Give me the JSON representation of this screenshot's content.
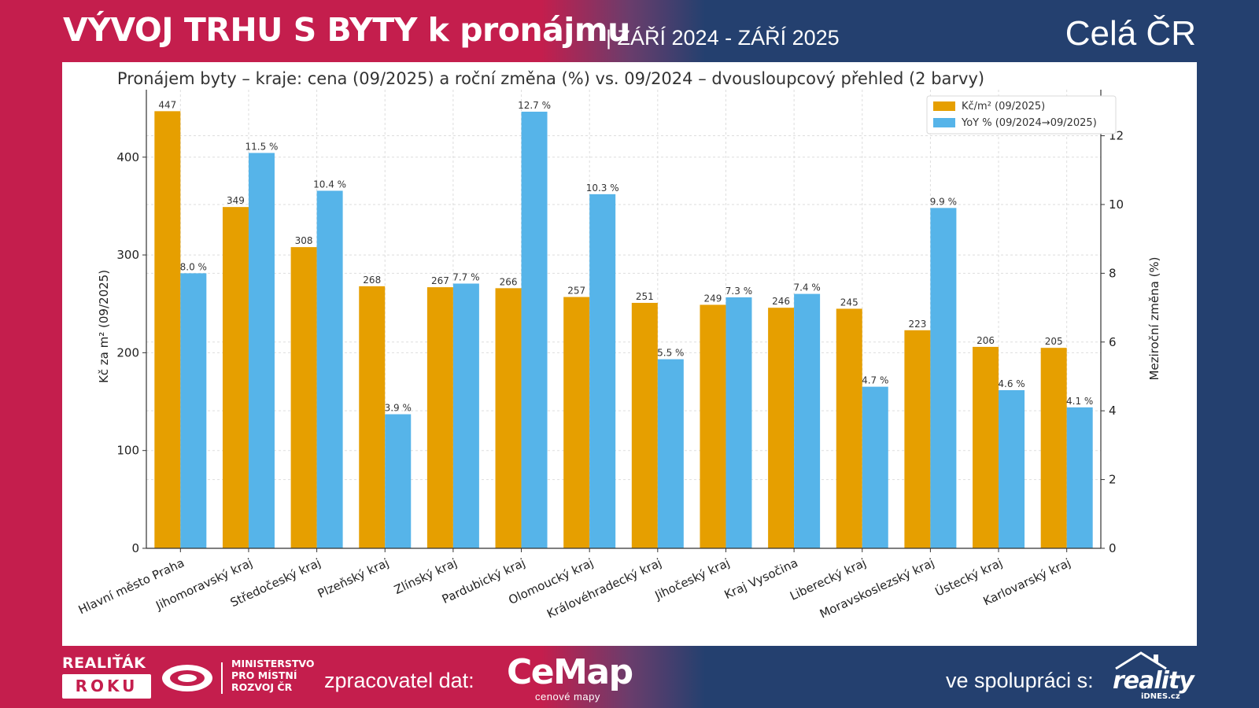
{
  "header": {
    "title": "VÝVOJ TRHU S BYTY k pronájmu",
    "date_range": "| ZÁŘÍ 2024 - ZÁŘÍ 2025",
    "region": "Celá ČR"
  },
  "footer": {
    "award_top": "REALIŤÁK",
    "award_bottom": "ROKU",
    "ministry_line1": "MINISTERSTVO",
    "ministry_line2": "PRO MÍSTNÍ",
    "ministry_line3": "ROZVOJ ČR",
    "processor_label": "zpracovatel dat:",
    "cemap_name": "CeMap",
    "cemap_sub": "cenové mapy",
    "partner_label": "ve spolupráci s:",
    "reality_name": "reality",
    "reality_sub": "iDNES.cz"
  },
  "colors": {
    "price": "#E69F00",
    "yoy": "#56B4E9",
    "brand_red": "#c41e4d",
    "brand_blue": "#24406f"
  },
  "chart_data": {
    "type": "bar",
    "title": "Pronájem byty – kraje: cena (09/2025) a roční změna (%) vs. 09/2024 – dvousloupcový přehled (2 barvy)",
    "ylabel": "Kč za m² (09/2025)",
    "y2label": "Meziroční změna (%)",
    "xlabel": "",
    "ylim": [
      0,
      469
    ],
    "y2lim": [
      0,
      13.34
    ],
    "yticks": [
      0,
      100,
      200,
      300,
      400
    ],
    "y2ticks": [
      0,
      2,
      4,
      6,
      8,
      10,
      12
    ],
    "grid": true,
    "legend_position": "top-right",
    "categories": [
      "Hlavní město Praha",
      "Jihomoravský kraj",
      "Středočeský kraj",
      "Plzeňský kraj",
      "Zlínský kraj",
      "Pardubický kraj",
      "Olomoucký kraj",
      "Královéhradecký kraj",
      "Jihočeský kraj",
      "Kraj Vysočina",
      "Liberecký kraj",
      "Moravskoslezský kraj",
      "Ústecký kraj",
      "Karlovarský kraj"
    ],
    "series": [
      {
        "name": "Kč/m² (09/2025)",
        "axis": "left",
        "values": [
          447,
          349,
          308,
          268,
          267,
          266,
          257,
          251,
          249,
          246,
          245,
          223,
          206,
          205
        ],
        "labels": [
          "447",
          "349",
          "308",
          "268",
          "267",
          "266",
          "257",
          "251",
          "249",
          "246",
          "245",
          "223",
          "206",
          "205"
        ]
      },
      {
        "name": "YoY % (09/2024→09/2025)",
        "axis": "right",
        "values": [
          8.0,
          11.5,
          10.4,
          3.9,
          7.7,
          12.7,
          10.3,
          5.5,
          7.3,
          7.4,
          4.7,
          9.9,
          4.6,
          4.1
        ],
        "labels": [
          "8.0 %",
          "11.5 %",
          "10.4 %",
          "3.9 %",
          "7.7 %",
          "12.7 %",
          "10.3 %",
          "5.5 %",
          "7.3 %",
          "7.4 %",
          "4.7 %",
          "9.9 %",
          "4.6 %",
          "4.1 %"
        ]
      }
    ]
  }
}
